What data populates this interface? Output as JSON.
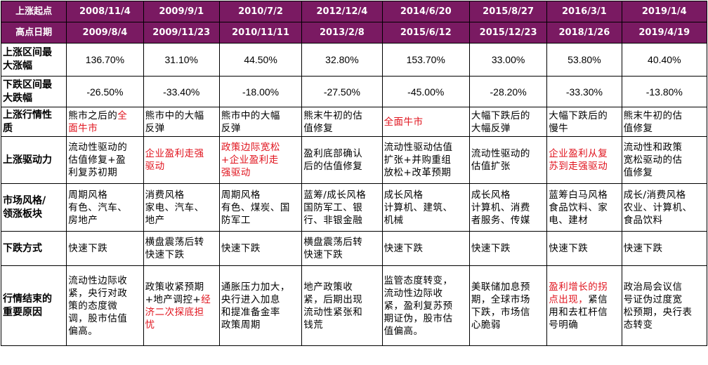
{
  "header": {
    "start_label": "上涨起点",
    "peak_label": "高点日期",
    "start_dates": [
      "2008/11/4",
      "2009/9/1",
      "2010/7/2",
      "2012/12/4",
      "2014/6/20",
      "2015/8/27",
      "2016/3/1",
      "2019/1/4"
    ],
    "peak_dates": [
      "2009/8/4",
      "2009/11/23",
      "2010/11/11",
      "2013/2/8",
      "2015/6/12",
      "2015/12/23",
      "2018/1/26",
      "2019/4/19"
    ]
  },
  "rows": {
    "max_gain": {
      "label": "上涨区间最\n大涨幅",
      "values": [
        "136.70%",
        "31.10%",
        "44.50%",
        "32.80%",
        "153.70%",
        "33.00%",
        "53.80%",
        "40.40%"
      ]
    },
    "max_drop": {
      "label": "下跌区间最\n大跌幅",
      "values": [
        "-26.50%",
        "-33.40%",
        "-18.00%",
        "-27.50%",
        "-45.00%",
        "-28.20%",
        "-33.30%",
        "-13.80%"
      ]
    },
    "nature": {
      "label": "上涨行情性\n质",
      "values": [
        {
          "black": "熊市之后的",
          "red": "全\n面牛市"
        },
        {
          "black": "熊市中的大幅\n反弹",
          "red": ""
        },
        {
          "black": "熊市中的大幅\n反弹",
          "red": ""
        },
        {
          "black": "熊末牛初的估\n值修复",
          "red": ""
        },
        {
          "black": "",
          "red": "全面牛市"
        },
        {
          "black": "大幅下跌后的\n大幅反弹",
          "red": ""
        },
        {
          "black": "大幅下跌后的\n慢牛",
          "red": ""
        },
        {
          "black": "熊末牛初的估\n值修复",
          "red": ""
        }
      ]
    },
    "driver": {
      "label": "上涨驱动力",
      "values": [
        {
          "black": "流动性驱动的\n估值修复+盈\n利复苏初期",
          "red": ""
        },
        {
          "black": "",
          "red": "企业盈利走强\n驱动"
        },
        {
          "black": "",
          "red": "政策边际宽松\n+企业盈利走\n强驱动"
        },
        {
          "black": "盈利底部确认\n后的估值修复",
          "red": ""
        },
        {
          "black": "流动性驱动估值\n扩张+并购重组\n放松+改革预期",
          "red": ""
        },
        {
          "black": "流动性驱动的\n估值扩张",
          "red": ""
        },
        {
          "black": "",
          "red": "企业盈利从复\n苏到走强驱动"
        },
        {
          "black": "流动性和政策\n宽松驱动的估\n值修复",
          "red": ""
        }
      ]
    },
    "style": {
      "label": "市场风格/\n领涨板块",
      "values": [
        "周期风格\n有色、汽车、\n房地产",
        "消费风格\n家电、汽车、\n地产",
        "周期风格\n有色、煤炭、国\n防军工",
        "蓝筹/成长风格\n国防军工、银\n行、非银金融",
        "成长风格\n计算机、建筑、\n机械",
        "成长风格\n计算机、消费\n者服务、传媒",
        "蓝筹白马风格\n食品饮料、家\n电、建材",
        "成长/消费风格\n农业、计算机、\n食品饮料"
      ]
    },
    "decline": {
      "label": "下跌方式",
      "values": [
        "快速下跌",
        "横盘震荡后转\n快速下跌",
        "快速下跌",
        "横盘震荡后转\n快速下跌",
        "快速下跌",
        "快速下跌",
        "快速下跌",
        "快速下跌"
      ]
    },
    "end_reason": {
      "label": "行情结束的\n重要原因",
      "values": [
        {
          "black": "流动性边际收\n紧，央行对政\n策的态度微\n调，股市估值\n偏高。",
          "red": "",
          "tail": ""
        },
        {
          "black": "政策收紧预期\n+地产调控+",
          "red": "经\n济二次探底担\n忧",
          "tail": ""
        },
        {
          "black": "通胀压力加大，\n央行进入加息\n和提准备金率\n政策周期",
          "red": "",
          "tail": ""
        },
        {
          "black": "地产政策收\n紧，后期出现\n流动性紧张和\n钱荒",
          "red": "",
          "tail": ""
        },
        {
          "black": "监管态度转变，\n流动性边际收\n紧，盈利复苏预\n期证伪，股市估\n值偏高。",
          "red": "",
          "tail": ""
        },
        {
          "black": "美联储加息预\n期，全球市场\n下跌，市场信\n心脆弱",
          "red": "",
          "tail": ""
        },
        {
          "black": "",
          "red": "盈利增长的拐\n点出现，",
          "tail": "紧信\n用和去杠杆信\n号明确"
        },
        {
          "black": "政治局会议信\n号证伪过度宽\n松预期，央行表\n态转变",
          "red": "",
          "tail": ""
        }
      ]
    }
  }
}
